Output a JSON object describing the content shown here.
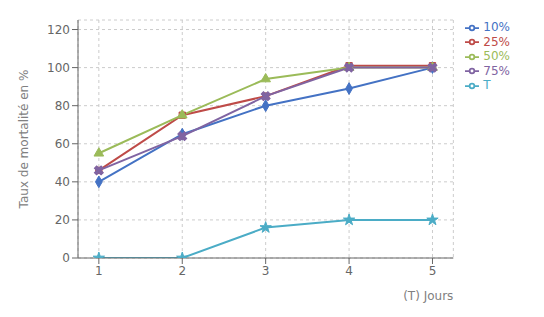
{
  "chart_data": {
    "type": "line",
    "x": [
      1,
      2,
      3,
      4,
      5
    ],
    "series": [
      {
        "name": "10%",
        "color": "#4472C4",
        "marker": "diamond",
        "values": [
          40,
          65,
          80,
          89,
          100
        ]
      },
      {
        "name": "25%",
        "color": "#BE4B48",
        "marker": "square",
        "values": [
          46,
          75,
          85,
          101,
          101
        ]
      },
      {
        "name": "50%",
        "color": "#9BBB59",
        "marker": "triangle",
        "values": [
          55,
          75,
          94,
          100,
          100
        ]
      },
      {
        "name": "75%",
        "color": "#8064A2",
        "marker": "x",
        "values": [
          46,
          64,
          85,
          100,
          100
        ]
      },
      {
        "name": "T",
        "color": "#4BACC6",
        "marker": "star",
        "values": [
          0,
          0,
          16,
          20,
          20
        ]
      }
    ],
    "xlabel": "(T) Jours",
    "ylabel": "Taux de mortalité en %",
    "xlim": [
      0.75,
      5.25
    ],
    "xticks": [
      1,
      2,
      3,
      4,
      5
    ],
    "ylim": [
      0,
      125
    ],
    "yticks": [
      0,
      20,
      40,
      60,
      80,
      100,
      120
    ],
    "grid": true,
    "legend": "right"
  }
}
